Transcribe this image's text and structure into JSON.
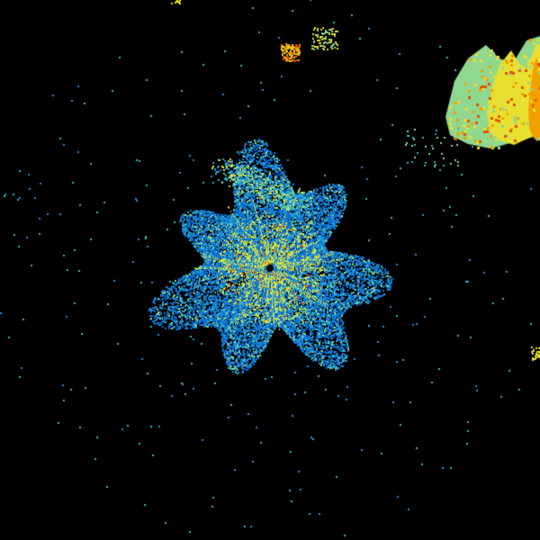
{
  "palette": {
    "background": "#000000",
    "clutter_blue": "#0a70d0",
    "light_blue": "#1e90e0",
    "cyan": "#30b8c0",
    "green": "#90d890",
    "yellow": "#e8e030",
    "orange": "#f0a000",
    "red_orange": "#e05000",
    "dark_red": "#a80000"
  }
}
